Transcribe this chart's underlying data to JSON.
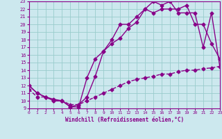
{
  "xlabel": "Windchill (Refroidissement éolien,°C)",
  "background_color": "#cce8ee",
  "line_color": "#880088",
  "grid_color": "#99cccc",
  "xlim": [
    0,
    23
  ],
  "ylim": [
    9,
    23
  ],
  "xticks": [
    0,
    1,
    2,
    3,
    4,
    5,
    6,
    7,
    8,
    9,
    10,
    11,
    12,
    13,
    14,
    15,
    16,
    17,
    18,
    19,
    20,
    21,
    22,
    23
  ],
  "yticks": [
    9,
    10,
    11,
    12,
    13,
    14,
    15,
    16,
    17,
    18,
    19,
    20,
    21,
    22,
    23
  ],
  "line1_x": [
    0,
    1,
    2,
    3,
    4,
    5,
    6,
    7,
    8,
    9,
    10,
    11,
    12,
    13,
    14,
    15,
    16,
    17,
    18,
    19,
    20,
    21,
    22,
    23
  ],
  "line1_y": [
    12,
    11,
    10.5,
    10,
    10,
    9.2,
    9.2,
    13,
    15.5,
    16.5,
    17.5,
    18.2,
    19.5,
    20.3,
    22,
    21.5,
    22,
    22,
    22,
    22.5,
    20,
    20,
    17.5,
    15.5
  ],
  "line2_x": [
    0,
    1,
    2,
    3,
    4,
    5,
    6,
    7,
    8,
    9,
    10,
    11,
    12,
    13,
    14,
    15,
    16,
    17,
    18,
    19,
    20,
    21,
    22,
    23
  ],
  "line2_y": [
    12,
    11,
    10.5,
    10.2,
    10,
    9.2,
    9.5,
    10.5,
    13.2,
    16.5,
    18,
    20,
    20,
    21,
    22,
    23,
    22.5,
    23,
    21.5,
    21.5,
    21.5,
    17,
    21.5,
    14.5
  ],
  "line3_x": [
    0,
    1,
    2,
    3,
    4,
    5,
    6,
    7,
    8,
    9,
    10,
    11,
    12,
    13,
    14,
    15,
    16,
    17,
    18,
    19,
    20,
    21,
    22,
    23
  ],
  "line3_y": [
    11.5,
    10.5,
    10.5,
    10,
    10,
    9.5,
    9.5,
    10,
    10.5,
    11,
    11.5,
    12,
    12.5,
    12.8,
    13,
    13.2,
    13.5,
    13.5,
    13.8,
    14,
    14,
    14.2,
    14.3,
    14.5
  ],
  "marker": "D",
  "marker_size": 2.5,
  "line_width": 1.0
}
